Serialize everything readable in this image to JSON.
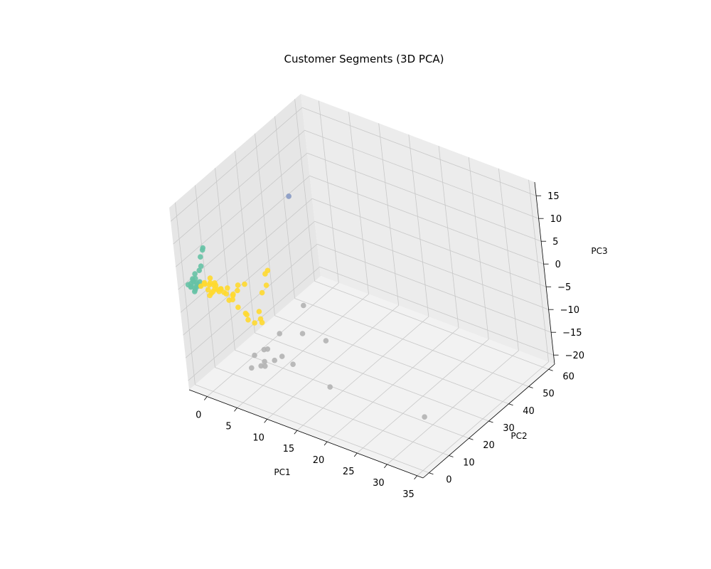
{
  "chart_data": {
    "type": "scatter",
    "projection": "3d",
    "title": "Customer Segments (3D PCA)",
    "xlabel": "PC1",
    "ylabel": "PC2",
    "zlabel": "PC3",
    "xlim": [
      -3,
      36
    ],
    "ylim": [
      -3,
      63
    ],
    "zlim": [
      -22,
      18
    ],
    "xticks": [
      0,
      5,
      10,
      15,
      20,
      25,
      30,
      35
    ],
    "yticks": [
      0,
      10,
      20,
      30,
      40,
      50,
      60
    ],
    "zticks": [
      -20,
      -15,
      -10,
      -5,
      0,
      5,
      10,
      15
    ],
    "grid": true,
    "legend": false,
    "series": [
      {
        "color": "#66c2a5",
        "points": [
          [
            -2.5,
            0.5,
            0
          ],
          [
            -2.2,
            0.8,
            -0.5
          ],
          [
            -2,
            0.5,
            0.5
          ],
          [
            -1.8,
            1,
            1
          ],
          [
            -2.3,
            1.2,
            -0.5
          ],
          [
            -1.5,
            0.5,
            -1
          ],
          [
            -1.8,
            1.5,
            0.5
          ],
          [
            -1.2,
            0.8,
            0
          ],
          [
            -1.5,
            1.5,
            1.5
          ],
          [
            -2,
            2,
            -1
          ],
          [
            -1,
            1.2,
            0.5
          ],
          [
            -1.3,
            0.3,
            -0.5
          ],
          [
            -2.1,
            1.8,
            1
          ],
          [
            -1.6,
            2.2,
            0.2
          ],
          [
            -1,
            2,
            0.8
          ],
          [
            -1.2,
            2.5,
            -0.4
          ],
          [
            -0.8,
            3,
            6
          ],
          [
            -0.5,
            3.5,
            7.5
          ],
          [
            -0.4,
            3.5,
            8
          ],
          [
            -0.5,
            2,
            4.5
          ],
          [
            -0.8,
            1.8,
            3.5
          ],
          [
            -1.5,
            1.5,
            2.5
          ]
        ]
      },
      {
        "color": "#ffd92f",
        "points": [
          [
            -0.5,
            1,
            0.5
          ],
          [
            0,
            1.5,
            1
          ],
          [
            0.5,
            1.5,
            0
          ],
          [
            0.8,
            2,
            1.5
          ],
          [
            1,
            1.5,
            -0.5
          ],
          [
            1.5,
            2,
            0.5
          ],
          [
            1.2,
            2.5,
            1
          ],
          [
            0.3,
            2.8,
            0.5
          ],
          [
            1.8,
            1.8,
            1.5
          ],
          [
            2,
            2.5,
            0
          ],
          [
            2.5,
            2,
            1
          ],
          [
            2.2,
            3,
            0.5
          ],
          [
            -0.2,
            2,
            1
          ],
          [
            0.5,
            3,
            2
          ],
          [
            1,
            3.5,
            1
          ],
          [
            1.5,
            3,
            0
          ],
          [
            3,
            2,
            0.5
          ],
          [
            3.5,
            2.5,
            1.5
          ],
          [
            2.8,
            3.5,
            -0.5
          ],
          [
            4,
            3,
            -1
          ],
          [
            3,
            4,
            -2
          ],
          [
            4.5,
            2,
            0.5
          ],
          [
            5,
            3,
            1.5
          ],
          [
            5,
            2.5,
            -2
          ],
          [
            6,
            3,
            -3
          ],
          [
            6.5,
            2.5,
            -4
          ],
          [
            6,
            3.5,
            -3.5
          ],
          [
            7,
            4,
            -5
          ],
          [
            8,
            4,
            -2
          ],
          [
            8.5,
            5,
            2
          ],
          [
            9,
            6,
            3.5
          ],
          [
            9,
            6,
            6
          ],
          [
            9.5,
            6,
            7
          ],
          [
            8.5,
            3,
            -3
          ],
          [
            8.5,
            3.5,
            -4
          ],
          [
            6,
            4,
            3
          ],
          [
            5,
            3.5,
            2.5
          ],
          [
            4,
            3.5,
            0
          ],
          [
            0.8,
            1.2,
            -1
          ],
          [
            1.5,
            1,
            0.3
          ]
        ]
      },
      {
        "color": "#b3b3b3",
        "points": [
          [
            7,
            26,
            14.5
          ],
          [
            13,
            20,
            -12
          ],
          [
            14,
            7,
            -5
          ],
          [
            10,
            7,
            -7
          ],
          [
            7,
            7,
            -12
          ],
          [
            8,
            6,
            -11
          ],
          [
            6,
            5,
            -13
          ],
          [
            10,
            7,
            -12
          ],
          [
            9,
            6,
            -13
          ],
          [
            8,
            4,
            -13
          ],
          [
            6,
            3,
            -15
          ],
          [
            7.5,
            3.5,
            -14
          ],
          [
            8,
            4,
            -14
          ],
          [
            11,
            9,
            -14
          ],
          [
            17,
            9,
            -16
          ],
          [
            34,
            6,
            -13
          ],
          [
            9,
            22,
            -7
          ]
        ]
      },
      {
        "color": "#8da0cb",
        "points": [
          [
            7,
            26,
            14.5
          ]
        ]
      }
    ]
  }
}
